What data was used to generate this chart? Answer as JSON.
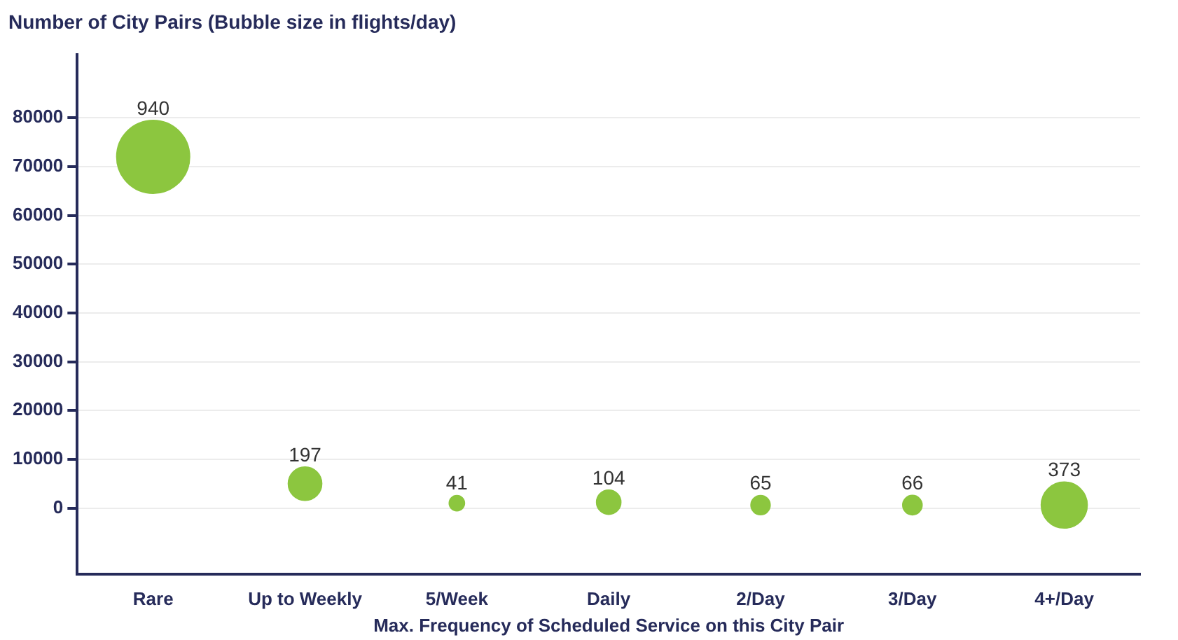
{
  "chart_data": {
    "type": "bubble",
    "title": "Number of City Pairs (Bubble size in flights/day)",
    "xlabel": "Max. Frequency of Scheduled Service on this City Pair",
    "categories": [
      "Rare",
      "Up to Weekly",
      "5/Week",
      "Daily",
      "2/Day",
      "3/Day",
      "4+/Day"
    ],
    "series": [
      {
        "color": "#8cc63f",
        "values": [
          72000,
          5000,
          1000,
          1200,
          600,
          600,
          600
        ],
        "sizes": [
          940,
          197,
          41,
          104,
          65,
          66,
          373
        ],
        "value_labels": [
          "940",
          "197",
          "41",
          "104",
          "65",
          "66",
          "373"
        ]
      }
    ],
    "ylim": [
      -13500,
      93000
    ],
    "yticks": [
      0,
      10000,
      20000,
      30000,
      40000,
      50000,
      60000,
      70000,
      80000
    ],
    "grid": "y",
    "legend": false
  }
}
